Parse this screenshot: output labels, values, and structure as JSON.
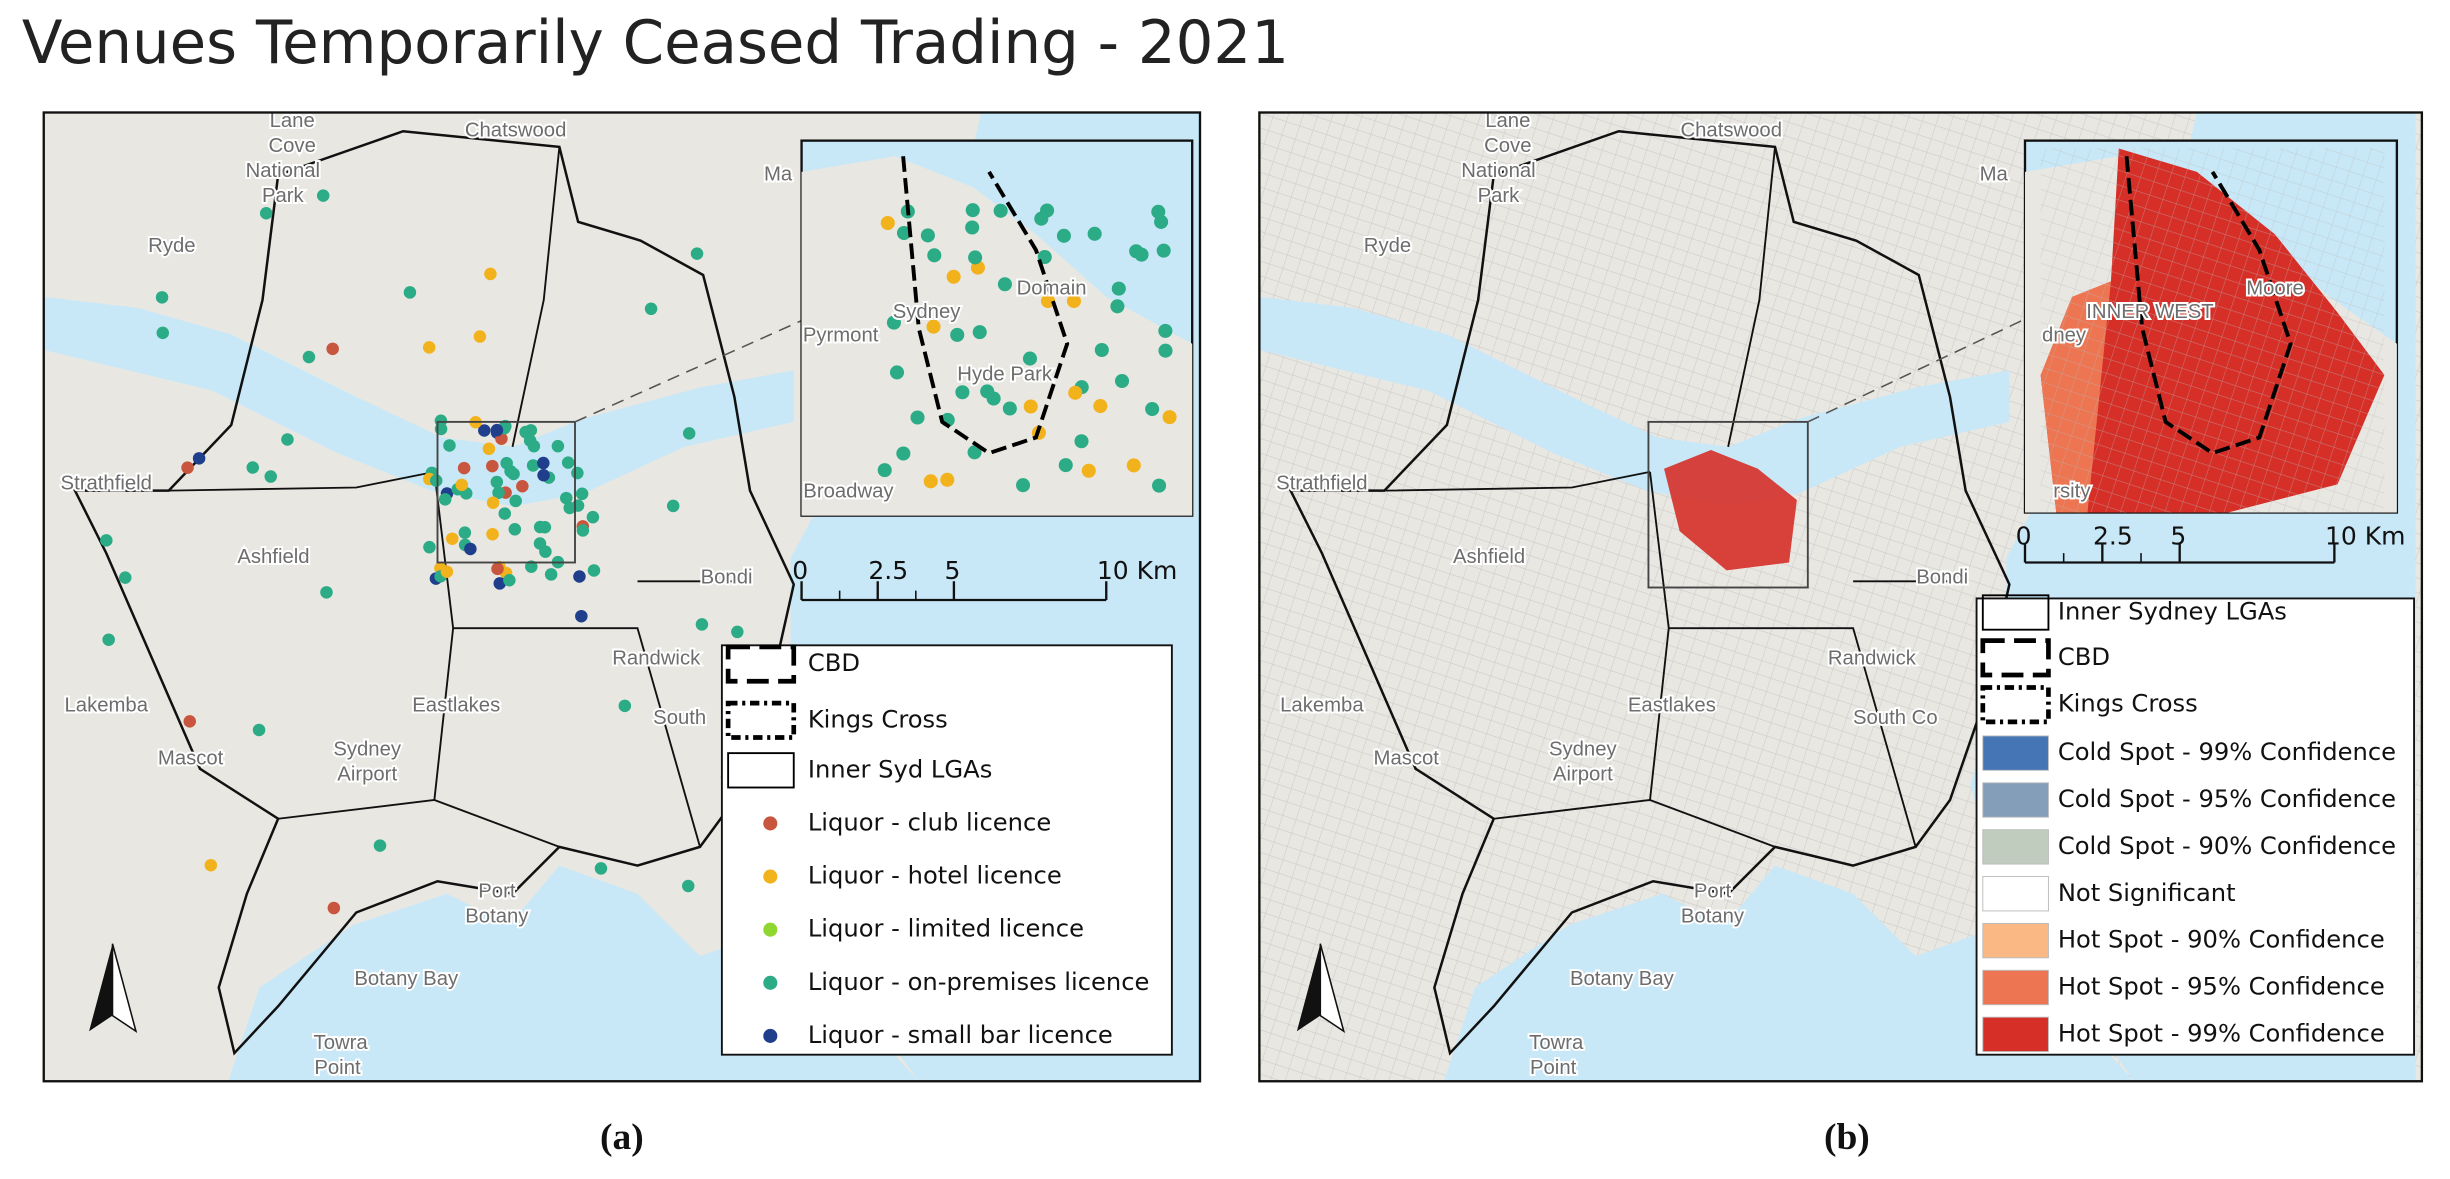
{
  "title": "Venues Temporarily Ceased Trading - 2021",
  "panels": [
    {
      "caption": "(a)",
      "map_labels": [
        "Lane",
        "Cove",
        "National",
        "Park",
        "Chatswood",
        "Ryde",
        "Strathfield",
        "Ashfield",
        "Lakemba",
        "Eastlakes",
        "Sydney",
        "Airport",
        "Mascot",
        "Randwick",
        "South",
        "Port",
        "Botany",
        "Botany Bay",
        "Towra",
        "Point",
        "Bondi",
        "Ma"
      ],
      "inset_labels": [
        "Sydney",
        "Domain",
        "Pyrmont",
        "Broadway",
        "Hyde Park"
      ],
      "scale": [
        0,
        2.5,
        5,
        {
          "value": 10,
          "label": "10 Km"
        }
      ],
      "legend": [
        {
          "label": "CBD"
        },
        {
          "label": "Kings Cross"
        },
        {
          "label": "Inner Syd LGAs"
        },
        {
          "label": "Liquor - club licence",
          "color": "#c8553d"
        },
        {
          "label": "Liquor - hotel licence",
          "color": "#f2b21b"
        },
        {
          "label": "Liquor - limited licence",
          "color": "#8fd631"
        },
        {
          "label": "Liquor - on-premises licence",
          "color": "#2bab86"
        },
        {
          "label": "Liquor - small bar licence",
          "color": "#1f3e8c"
        }
      ]
    },
    {
      "caption": "(b)",
      "map_labels": [
        "Lane",
        "Cove",
        "National",
        "Park",
        "Chatswood",
        "Ryde",
        "Strathfield",
        "Ashfield",
        "Lakemba",
        "Eastlakes",
        "Sydney",
        "Airport",
        "Mascot",
        "Randwick",
        "South Co",
        "Port",
        "Botany",
        "Botany Bay",
        "Towra",
        "Point",
        "Bondi",
        "Ma"
      ],
      "inset_labels": [
        "INNER WEST",
        "Moore",
        "dney",
        "rsity"
      ],
      "scale": [
        0,
        2.5,
        5,
        {
          "value": 10,
          "label": "10 Km"
        }
      ],
      "legend": [
        {
          "label": "Inner Sydney LGAs"
        },
        {
          "label": "CBD"
        },
        {
          "label": "Kings Cross"
        },
        {
          "label": "Cold Spot - 99% Confidence",
          "color": "#4575b5"
        },
        {
          "label": "Cold Spot - 95% Confidence",
          "color": "#849eba"
        },
        {
          "label": "Cold Spot - 90% Confidence",
          "color": "#c0ccbe"
        },
        {
          "label": "Not Significant",
          "color": "#ffffff"
        },
        {
          "label": "Hot Spot - 90% Confidence",
          "color": "#fab984"
        },
        {
          "label": "Hot Spot - 95% Confidence",
          "color": "#ed7551"
        },
        {
          "label": "Hot Spot - 99% Confidence",
          "color": "#d62f27"
        }
      ]
    }
  ]
}
